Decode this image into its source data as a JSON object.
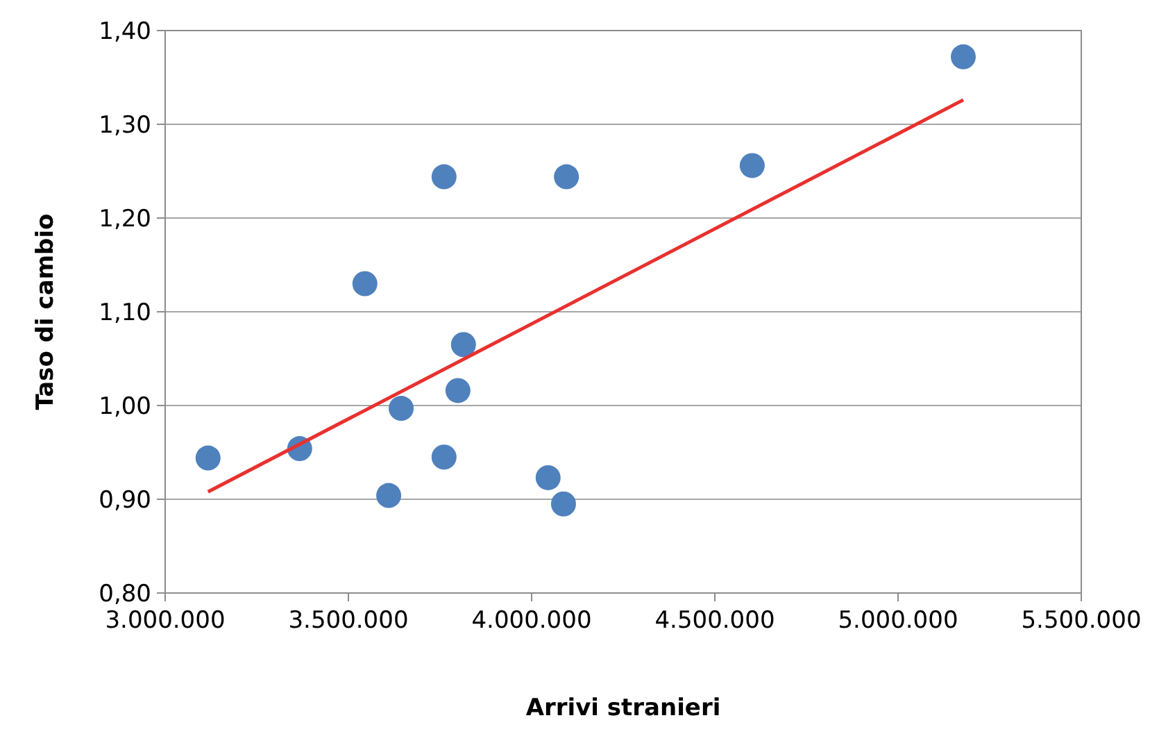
{
  "chart_data": {
    "type": "scatter",
    "xlabel": "Arrivi stranieri",
    "ylabel": "Taso di cambio",
    "grid": "y",
    "marker": "circle",
    "xlim": [
      3000000,
      5500000
    ],
    "xticks": [
      {
        "value": 3000000,
        "label": "3.000.000"
      },
      {
        "value": 3500000,
        "label": "3.500.000"
      },
      {
        "value": 4000000,
        "label": "4.000.000"
      },
      {
        "value": 4500000,
        "label": "4.500.000"
      },
      {
        "value": 5000000,
        "label": "5.000.000"
      },
      {
        "value": 5500000,
        "label": "5.500.000"
      }
    ],
    "ylim": [
      0.8,
      1.4
    ],
    "yticks": [
      {
        "value": 0.8,
        "label": "0,80"
      },
      {
        "value": 0.9,
        "label": "0,90"
      },
      {
        "value": 1.0,
        "label": "1,00"
      },
      {
        "value": 1.1,
        "label": "1,10"
      },
      {
        "value": 1.2,
        "label": "1,20"
      },
      {
        "value": 1.3,
        "label": "1,30"
      },
      {
        "value": 1.4,
        "label": "1,40"
      }
    ],
    "series": [
      {
        "color": "#4f81bd",
        "x": [
          3117000,
          3367000,
          3545000,
          3610000,
          3644000,
          3761000,
          3761000,
          3799000,
          3814000,
          4045000,
          4087000,
          4095000,
          4602000,
          5178000
        ],
        "values": [
          0.944,
          0.954,
          1.13,
          0.904,
          0.997,
          1.244,
          0.945,
          1.016,
          1.065,
          0.923,
          0.895,
          1.244,
          1.256,
          1.372
        ]
      },
      {
        "type": "line",
        "color": "#e8312f",
        "marker": "none",
        "x": [
          3117000,
          5178000
        ],
        "values": [
          0.908,
          1.326
        ]
      }
    ]
  }
}
